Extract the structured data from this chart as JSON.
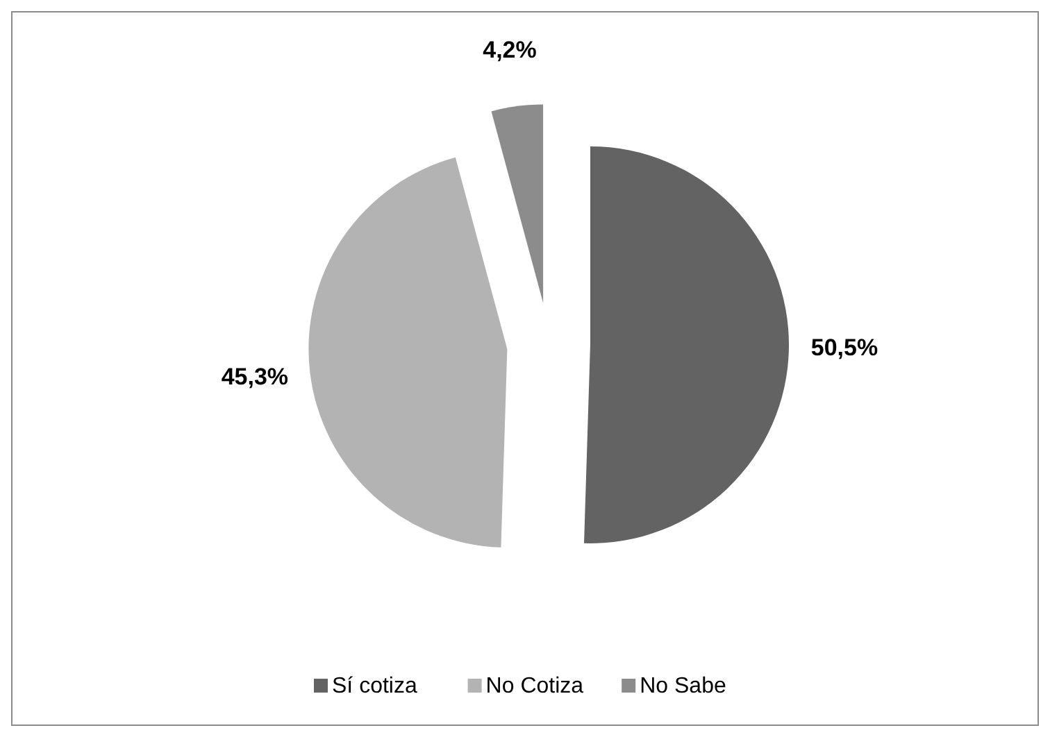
{
  "chart_data": {
    "type": "pie",
    "categories": [
      "Sí cotiza",
      "No Cotiza",
      "No Sabe"
    ],
    "values": [
      50.5,
      45.3,
      4.2
    ],
    "colors": [
      "#636363",
      "#b3b3b3",
      "#8c8c8c"
    ],
    "value_labels": [
      "50,5%",
      "45,3%",
      "4,2%"
    ],
    "legend": "bottom"
  }
}
